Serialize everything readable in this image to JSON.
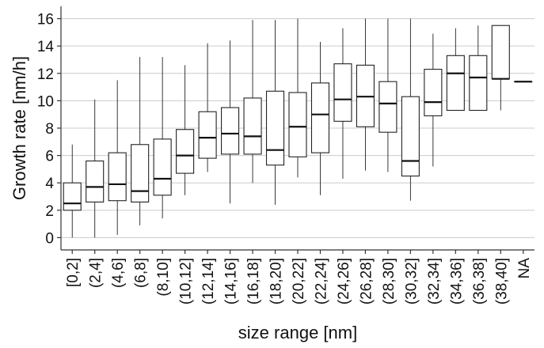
{
  "chart_data": {
    "type": "box",
    "xlabel": "size range [nm]",
    "ylabel": "Growth rate [nm/h]",
    "ylim": [
      -0.9,
      16.9
    ],
    "yticks": [
      0,
      2,
      4,
      6,
      8,
      10,
      12,
      14,
      16
    ],
    "grid": "horizontal",
    "categories": [
      "[0,2]",
      "(2,4]",
      "(4,6]",
      "(6,8]",
      "(8,10]",
      "(10,12]",
      "(12,14]",
      "(14,16]",
      "(16,18]",
      "(18,20]",
      "(20,22]",
      "(22,24]",
      "(24,26]",
      "(26,28]",
      "(28,30]",
      "(30,32]",
      "(32,34]",
      "(34,36]",
      "(36,38]",
      "(38,40]",
      "NA"
    ],
    "boxes": [
      {
        "min": 0.0,
        "q1": 2.0,
        "median": 2.5,
        "q3": 4.0,
        "max": 6.8
      },
      {
        "min": 0.0,
        "q1": 2.6,
        "median": 3.7,
        "q3": 5.6,
        "max": 10.1
      },
      {
        "min": 0.2,
        "q1": 2.7,
        "median": 3.9,
        "q3": 6.2,
        "max": 11.5
      },
      {
        "min": 0.9,
        "q1": 2.6,
        "median": 3.4,
        "q3": 6.8,
        "max": 13.2
      },
      {
        "min": 1.4,
        "q1": 3.1,
        "median": 4.3,
        "q3": 7.2,
        "max": 13.2
      },
      {
        "min": 3.1,
        "q1": 4.7,
        "median": 6.0,
        "q3": 7.9,
        "max": 12.6
      },
      {
        "min": 4.8,
        "q1": 5.8,
        "median": 7.3,
        "q3": 9.2,
        "max": 14.2
      },
      {
        "min": 2.5,
        "q1": 6.1,
        "median": 7.6,
        "q3": 9.5,
        "max": 14.4
      },
      {
        "min": 4.0,
        "q1": 6.1,
        "median": 7.4,
        "q3": 10.2,
        "max": 15.9
      },
      {
        "min": 2.4,
        "q1": 5.3,
        "median": 6.4,
        "q3": 10.7,
        "max": 15.9
      },
      {
        "min": 4.4,
        "q1": 5.9,
        "median": 8.1,
        "q3": 10.6,
        "max": 16.0
      },
      {
        "min": 3.1,
        "q1": 6.2,
        "median": 9.0,
        "q3": 11.3,
        "max": 14.3
      },
      {
        "min": 4.3,
        "q1": 8.5,
        "median": 10.1,
        "q3": 12.7,
        "max": 15.3
      },
      {
        "min": 4.9,
        "q1": 8.1,
        "median": 10.3,
        "q3": 12.6,
        "max": 16.0
      },
      {
        "min": 4.8,
        "q1": 7.7,
        "median": 9.8,
        "q3": 11.4,
        "max": 16.0
      },
      {
        "min": 2.7,
        "q1": 4.5,
        "median": 5.6,
        "q3": 10.3,
        "max": 16.0
      },
      {
        "min": 5.2,
        "q1": 8.9,
        "median": 9.9,
        "q3": 12.3,
        "max": 14.9
      },
      {
        "min": 9.3,
        "q1": 9.3,
        "median": 12.0,
        "q3": 13.3,
        "max": 15.3
      },
      {
        "min": 9.3,
        "q1": 9.3,
        "median": 11.7,
        "q3": 13.3,
        "max": 15.5
      },
      {
        "min": 9.3,
        "q1": 11.6,
        "median": 11.6,
        "q3": 15.5,
        "max": 15.5
      },
      {
        "min": 11.4,
        "q1": 11.4,
        "median": 11.4,
        "q3": 11.4,
        "max": 11.4
      }
    ]
  }
}
